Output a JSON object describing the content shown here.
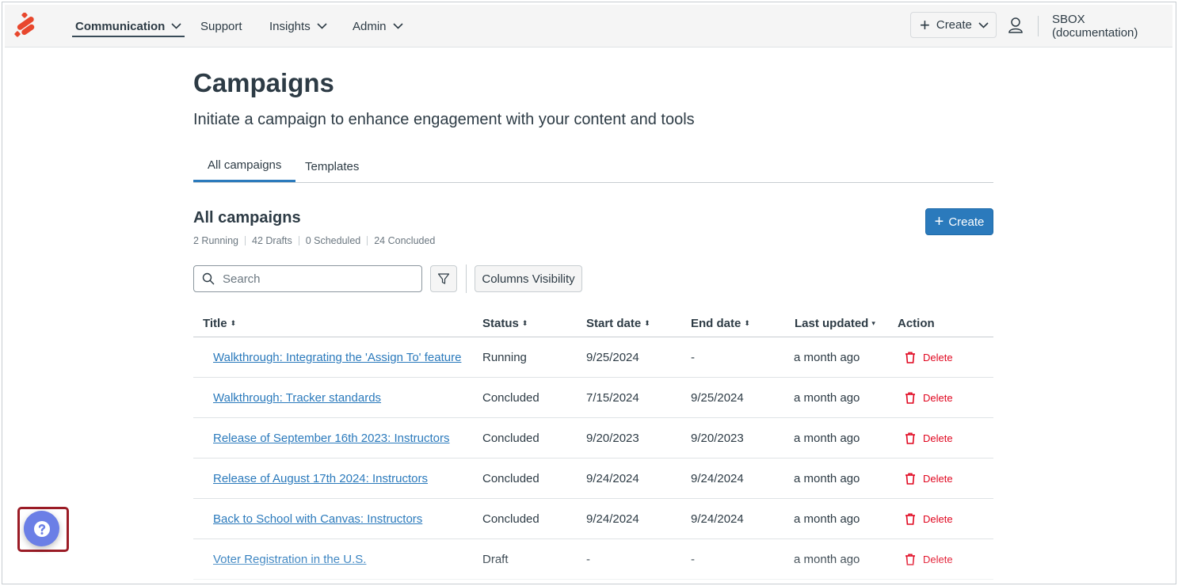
{
  "nav": {
    "items": [
      {
        "label": "Communication",
        "has_dropdown": true,
        "active": true
      },
      {
        "label": "Support",
        "has_dropdown": false,
        "active": false
      },
      {
        "label": "Insights",
        "has_dropdown": true,
        "active": false
      },
      {
        "label": "Admin",
        "has_dropdown": true,
        "active": false
      }
    ],
    "create_label": "Create",
    "account_label": "SBOX (documentation)"
  },
  "page": {
    "title": "Campaigns",
    "subtitle": "Initiate a campaign to enhance engagement with your content and tools"
  },
  "tabs": [
    {
      "label": "All campaigns",
      "active": true
    },
    {
      "label": "Templates",
      "active": false
    }
  ],
  "section": {
    "title": "All campaigns",
    "stats": [
      "2 Running",
      "42 Drafts",
      "0 Scheduled",
      "24 Concluded"
    ],
    "create_label": "Create"
  },
  "toolbar": {
    "search_placeholder": "Search",
    "columns_label": "Columns Visibility"
  },
  "table": {
    "columns": [
      "Title",
      "Status",
      "Start date",
      "End date",
      "Last updated",
      "Action"
    ],
    "sort_indicators": [
      "⬍",
      "⬍",
      "⬍",
      "⬍",
      "▾",
      ""
    ],
    "rows": [
      {
        "title": "Walkthrough: Integrating the 'Assign To' feature",
        "status": "Running",
        "start": "9/25/2024",
        "end": "-",
        "updated": "a month ago",
        "action": "Delete"
      },
      {
        "title": "Walkthrough: Tracker standards",
        "status": "Concluded",
        "start": "7/15/2024",
        "end": "9/25/2024",
        "updated": "a month ago",
        "action": "Delete"
      },
      {
        "title": "Release of September 16th 2023: Instructors",
        "status": "Concluded",
        "start": "9/20/2023",
        "end": "9/20/2023",
        "updated": "a month ago",
        "action": "Delete"
      },
      {
        "title": "Release of August 17th 2024: Instructors",
        "status": "Concluded",
        "start": "9/24/2024",
        "end": "9/24/2024",
        "updated": "a month ago",
        "action": "Delete"
      },
      {
        "title": "Back to School with Canvas: Instructors",
        "status": "Concluded",
        "start": "9/24/2024",
        "end": "9/24/2024",
        "updated": "a month ago",
        "action": "Delete"
      },
      {
        "title": "Voter Registration in the U.S.",
        "status": "Draft",
        "start": "-",
        "end": "-",
        "updated": "a month ago",
        "action": "Delete"
      }
    ]
  },
  "colors": {
    "brand": "#e8472d",
    "link": "#2b7abc",
    "primary": "#2b7abc",
    "danger": "#e0061f",
    "help": "#6b7fe6",
    "highlight": "#9b1c26"
  }
}
